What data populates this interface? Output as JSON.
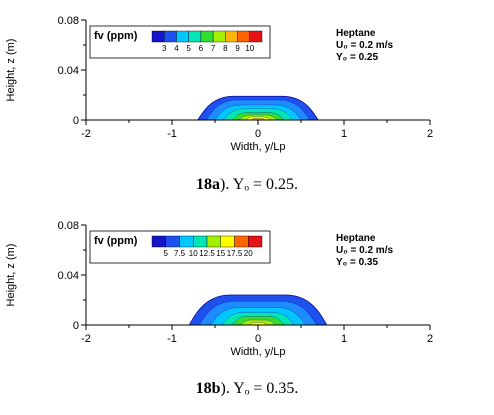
{
  "chart_data": [
    {
      "type": "heatmap",
      "panel": "18a",
      "xlabel": "Width, y/Lp",
      "ylabel": "Height, z (m)",
      "xlim": [
        -2,
        2
      ],
      "ylim": [
        0,
        0.08
      ],
      "x_ticks": [
        "-2",
        "-1",
        "0",
        "1",
        "2"
      ],
      "y_ticks": [
        "0",
        "0.04",
        "0.08"
      ],
      "legend": {
        "title": "fv (ppm)",
        "levels": [
          "3",
          "4",
          "5",
          "6",
          "7",
          "8",
          "9",
          "10"
        ],
        "colors": [
          "#1414c8",
          "#1e50f0",
          "#1e8cff",
          "#00c8ff",
          "#00e6b4",
          "#32dc32",
          "#a0f000",
          "#ffff00",
          "#ffb400",
          "#ff6400",
          "#e61414"
        ]
      },
      "annotation": {
        "fuel": "Heptane",
        "u0": "U₀ = 0.2 m/s",
        "y0": "Y₀ = 0.25"
      },
      "contours": [
        {
          "level": 3,
          "half_width": 0.7,
          "height": 0.019
        },
        {
          "level": 4,
          "half_width": 0.6,
          "height": 0.016
        },
        {
          "level": 5,
          "half_width": 0.5,
          "height": 0.012
        },
        {
          "level": 6,
          "half_width": 0.4,
          "height": 0.009
        },
        {
          "level": 7,
          "half_width": 0.3,
          "height": 0.006
        },
        {
          "level": 8,
          "half_width": 0.22,
          "height": 0.004
        },
        {
          "level": 9,
          "half_width": 0.14,
          "height": 0.0025
        },
        {
          "level": 10,
          "half_width": 0.08,
          "height": 0.0012
        }
      ]
    },
    {
      "type": "heatmap",
      "panel": "18b",
      "xlabel": "Width, y/Lp",
      "ylabel": "Height, z (m)",
      "xlim": [
        -2,
        2
      ],
      "ylim": [
        0,
        0.08
      ],
      "x_ticks": [
        "-2",
        "-1",
        "0",
        "1",
        "2"
      ],
      "y_ticks": [
        "0",
        "0.04",
        "0.08"
      ],
      "legend": {
        "title": "fv (ppm)",
        "levels": [
          "5",
          "7.5",
          "10",
          "12.5",
          "15",
          "17.5",
          "20"
        ],
        "colors": [
          "#1414c8",
          "#1e50f0",
          "#1e8cff",
          "#00c8ff",
          "#00e6b4",
          "#32dc32",
          "#a0f000",
          "#ffff00",
          "#ffb400",
          "#ff6400",
          "#e61414"
        ]
      },
      "annotation": {
        "fuel": "Heptane",
        "u0": "U₀ = 0.2 m/s",
        "y0": "Y₀ = 0.35"
      },
      "contours": [
        {
          "level": 5,
          "half_width": 0.8,
          "height": 0.024
        },
        {
          "level": 7.5,
          "half_width": 0.68,
          "height": 0.019
        },
        {
          "level": 10,
          "half_width": 0.55,
          "height": 0.014
        },
        {
          "level": 12.5,
          "half_width": 0.42,
          "height": 0.01
        },
        {
          "level": 15,
          "half_width": 0.3,
          "height": 0.007
        },
        {
          "level": 17.5,
          "half_width": 0.2,
          "height": 0.004
        },
        {
          "level": 20,
          "half_width": 0.1,
          "height": 0.002
        }
      ]
    }
  ],
  "captions": [
    {
      "label": "18a",
      "text": "). Yₒ = 0.25."
    },
    {
      "label": "18b",
      "text": "). Yₒ = 0.35."
    }
  ]
}
